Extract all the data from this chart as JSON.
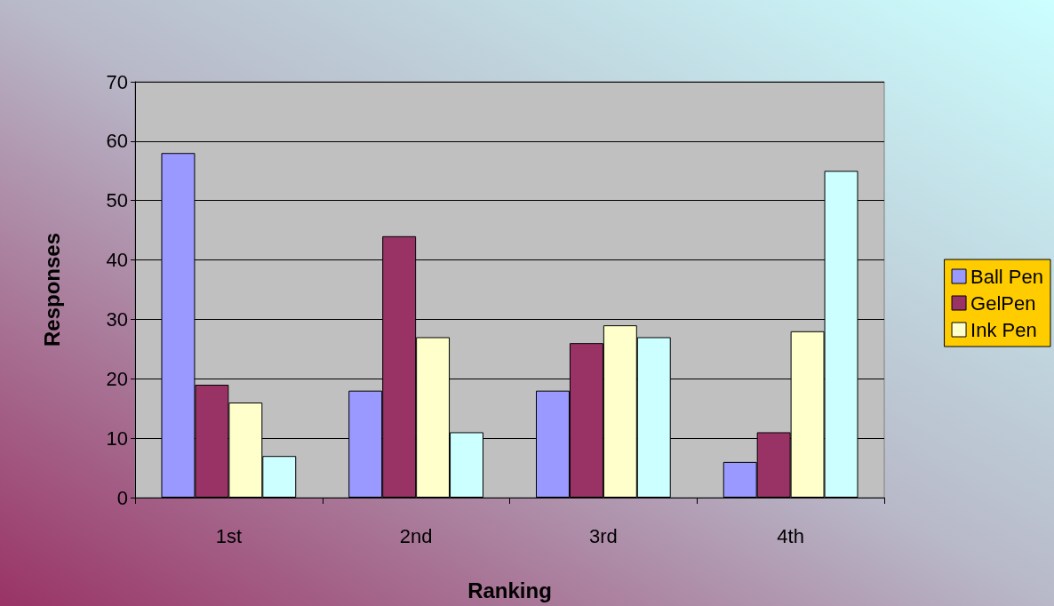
{
  "chart_data": {
    "type": "bar",
    "xlabel": "Ranking",
    "ylabel": "Responses",
    "categories": [
      "1st",
      "2nd",
      "3rd",
      "4th"
    ],
    "series": [
      {
        "name": "Ball Pen",
        "color": "#9999ff",
        "values": [
          58,
          18,
          18,
          6
        ]
      },
      {
        "name": "GelPen",
        "color": "#993366",
        "values": [
          19,
          44,
          26,
          11
        ]
      },
      {
        "name": "Ink Pen",
        "color": "#ffffcc",
        "values": [
          16,
          27,
          29,
          28
        ]
      },
      {
        "color": "#ccffff",
        "values": [
          7,
          11,
          27,
          55
        ]
      }
    ],
    "ylim": [
      0,
      70
    ],
    "yticks": [
      0,
      10,
      20,
      30,
      40,
      50,
      60,
      70
    ],
    "grid": "y",
    "legend": "right"
  }
}
